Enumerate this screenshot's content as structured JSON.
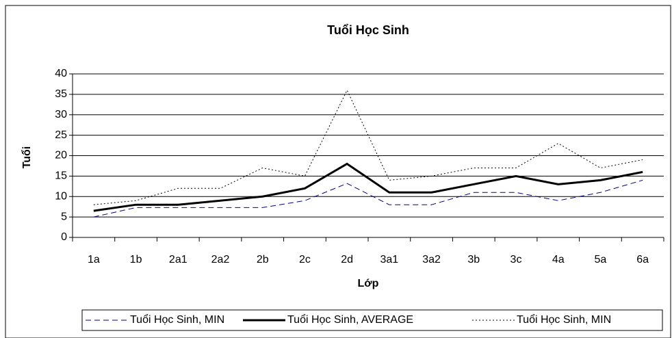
{
  "chart_data": {
    "type": "line",
    "title": "Tuổi Học Sinh",
    "x_label": "Lớp",
    "y_label": "Tuổi",
    "categories": [
      "1a",
      "1b",
      "2a1",
      "2a2",
      "2b",
      "2c",
      "2d",
      "3a1",
      "3a2",
      "3b",
      "3c",
      "4a",
      "5a",
      "6a"
    ],
    "series": [
      {
        "name": "Tuổi Học Sinh, MIN",
        "color": "#000080",
        "line_style": "dashed",
        "line_width": 1,
        "values": [
          5,
          7.3,
          7.3,
          7.3,
          7.3,
          9,
          13.2,
          8,
          8,
          11,
          11,
          9,
          11,
          14
        ]
      },
      {
        "name": "Tuổi Học Sinh, AVERAGE",
        "color": "#000000",
        "line_style": "solid",
        "line_width": 3,
        "values": [
          6.5,
          8,
          8,
          9,
          10,
          12,
          18,
          11,
          11,
          13,
          15,
          13,
          14,
          16
        ]
      },
      {
        "name": "Tuổi Học Sinh, MIN",
        "color": "#000000",
        "line_style": "dotted",
        "line_width": 1,
        "values": [
          8,
          9,
          12,
          12,
          17,
          15,
          36,
          14,
          15,
          17,
          17,
          23,
          17,
          19
        ]
      }
    ],
    "ylim": [
      0,
      40
    ],
    "yticks": [
      0,
      5,
      10,
      15,
      20,
      25,
      30,
      35,
      40
    ],
    "grid": true,
    "legend": "bottom"
  }
}
